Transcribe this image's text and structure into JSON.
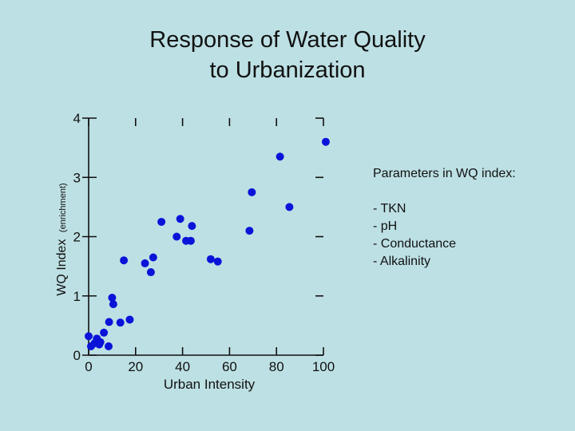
{
  "chart_data": {
    "type": "scatter",
    "title": [
      "Response of Water Quality",
      "to Urbanization"
    ],
    "xlabel": "Urban Intensity",
    "ylabel": "WQ Index",
    "ylabel_sub": "(enrichment)",
    "xlim": [
      0,
      100
    ],
    "ylim": [
      0,
      4
    ],
    "x_ticks": [
      "0",
      "20",
      "40",
      "60",
      "80",
      "100"
    ],
    "y_ticks": [
      "0",
      "1",
      "2",
      "3",
      "4"
    ],
    "grid": false,
    "points_color": "#0a14d8",
    "points": [
      {
        "x": 0,
        "y": 0.32
      },
      {
        "x": 1,
        "y": 0.15
      },
      {
        "x": 2.5,
        "y": 0.2
      },
      {
        "x": 3.5,
        "y": 0.28
      },
      {
        "x": 4.5,
        "y": 0.18
      },
      {
        "x": 5,
        "y": 0.22
      },
      {
        "x": 6.5,
        "y": 0.38
      },
      {
        "x": 8.5,
        "y": 0.15
      },
      {
        "x": 8.7,
        "y": 0.56
      },
      {
        "x": 10,
        "y": 0.97
      },
      {
        "x": 10.5,
        "y": 0.86
      },
      {
        "x": 13.5,
        "y": 0.55
      },
      {
        "x": 15,
        "y": 1.6
      },
      {
        "x": 17.5,
        "y": 0.6
      },
      {
        "x": 24,
        "y": 1.55
      },
      {
        "x": 26.5,
        "y": 1.4
      },
      {
        "x": 27.5,
        "y": 1.65
      },
      {
        "x": 31,
        "y": 2.25
      },
      {
        "x": 37.5,
        "y": 2.0
      },
      {
        "x": 39,
        "y": 2.3
      },
      {
        "x": 41.5,
        "y": 1.93
      },
      {
        "x": 43.5,
        "y": 1.93
      },
      {
        "x": 44,
        "y": 2.18
      },
      {
        "x": 52,
        "y": 1.62
      },
      {
        "x": 55,
        "y": 1.58
      },
      {
        "x": 68.5,
        "y": 2.1
      },
      {
        "x": 69.5,
        "y": 2.75
      },
      {
        "x": 81.5,
        "y": 3.35
      },
      {
        "x": 85.5,
        "y": 2.5
      },
      {
        "x": 101,
        "y": 3.6
      }
    ]
  },
  "annotation": {
    "heading": "Parameters in WQ index:",
    "items": [
      "- TKN",
      "-  pH",
      "-  Conductance",
      "-  Alkalinity"
    ]
  }
}
